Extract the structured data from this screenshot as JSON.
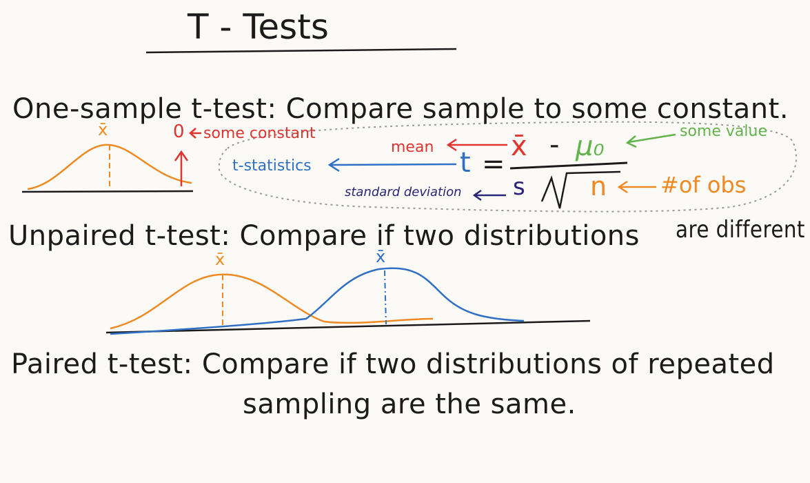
{
  "title": "T - Tests",
  "one_sample": {
    "heading": "One-sample t-test: Compare sample to some constant.",
    "xbar_label": "x̄",
    "zero_label": "0",
    "some_constant": "some constant"
  },
  "formula": {
    "xbar": "x̄",
    "minus": "-",
    "mu0": "μ₀",
    "t": "t",
    "equals": "=",
    "s": "s",
    "n": "n",
    "mean_label": "mean",
    "t_statistics_label": "t-statistics",
    "std_dev_label": "standard deviation",
    "some_value_label": "some value",
    "num_obs_label": "#of obs"
  },
  "unpaired": {
    "heading": "Unpaired t-test: Compare if two distributions",
    "heading_end": "are different",
    "xbar_orange": "x̄",
    "xbar_blue": "x̄"
  },
  "paired": {
    "heading": "Paired t-test: Compare if two distributions of repeated",
    "heading_line2": "sampling are the same."
  },
  "colors": {
    "ink": "#1b1b1b",
    "red": "#e0342f",
    "blue": "#2f6fc4",
    "navy": "#2a2479",
    "green": "#62b34a",
    "orange": "#ef8a22"
  }
}
